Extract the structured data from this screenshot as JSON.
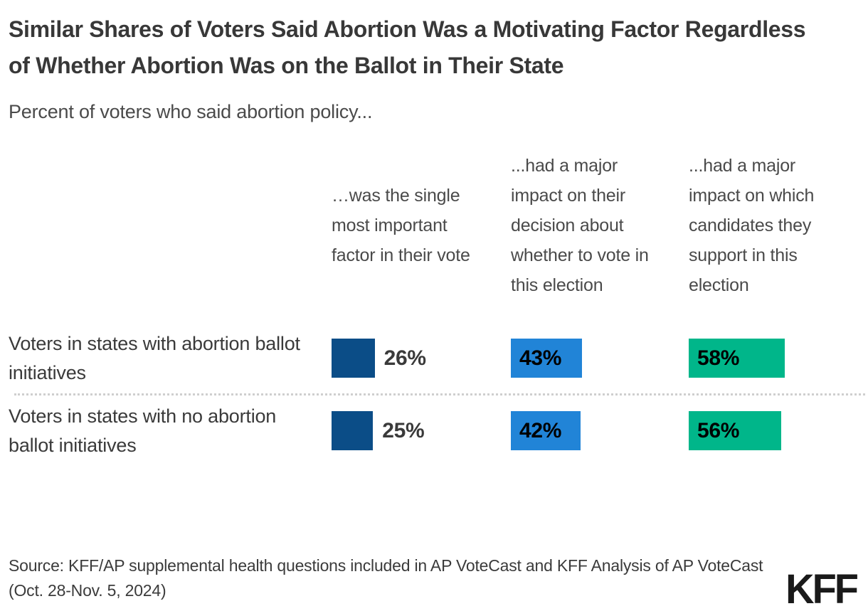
{
  "title": "Similar Shares of Voters Said Abortion Was a Motivating Factor Regardless of Whether Abortion Was on the Ballot in Their State",
  "subtitle": "Percent of voters who said abortion policy...",
  "chart_data": {
    "type": "bar",
    "orientation": "horizontal",
    "categories": [
      "Voters in states with abortion ballot initiatives",
      "Voters in states with no abortion ballot initiatives"
    ],
    "series": [
      {
        "name": "…was the single most important factor in their vote",
        "color": "#0B4D87",
        "values": [
          26,
          25
        ],
        "label_position": "outside"
      },
      {
        "name": "...had a major impact on their decision about whether to vote in this election",
        "color": "#2184D7",
        "values": [
          43,
          42
        ],
        "label_position": "inside"
      },
      {
        "name": "...had a major impact on which candidates they support in this election",
        "color": "#00B68A",
        "values": [
          58,
          56
        ],
        "label_position": "inside"
      }
    ],
    "value_suffix": "%",
    "xlim": [
      0,
      100
    ],
    "legend_position": "none",
    "grid": false
  },
  "source": "Source: KFF/AP supplemental health questions included in AP VoteCast and KFF Analysis of AP VoteCast (Oct. 28-Nov. 5, 2024)",
  "logo_text": "KFF",
  "colors": {
    "navy": "#0B4D87",
    "blue": "#2184D7",
    "green": "#00B68A",
    "title_text": "#383838",
    "body_text": "#4a4a4a",
    "divider": "#cfcfcf",
    "background": "#ffffff"
  }
}
